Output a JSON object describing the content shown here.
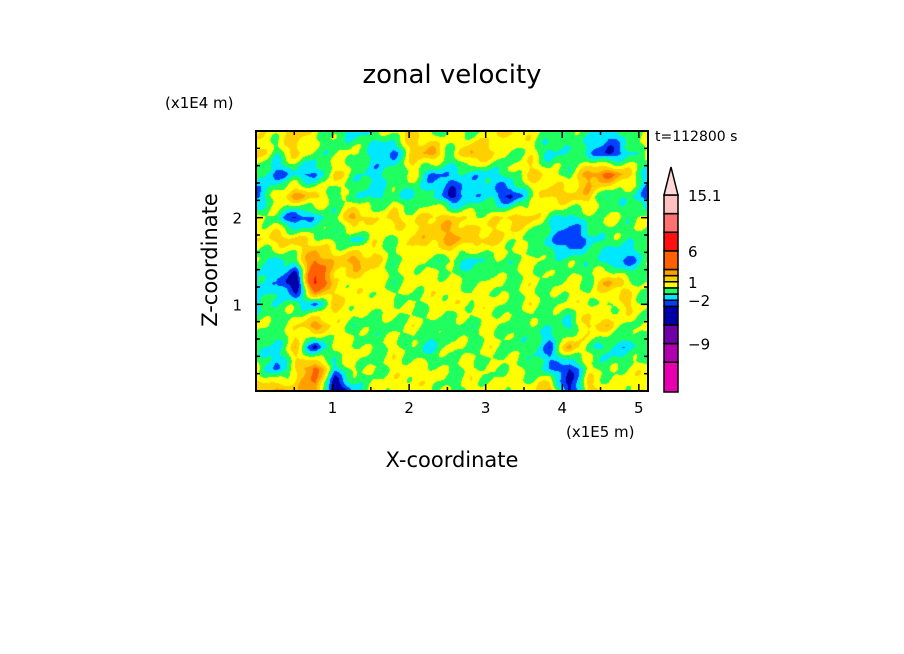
{
  "chart_data": {
    "type": "heatmap",
    "title": "zonal velocity",
    "xlabel": "X-coordinate",
    "ylabel": "Z-coordinate",
    "x_unit": "(x1E5 m)",
    "y_unit": "(x1E4 m)",
    "annotation": "t=112800 s",
    "xlim": [
      0,
      5.12
    ],
    "ylim": [
      0,
      3.0
    ],
    "x_ticks": [
      "1",
      "2",
      "3",
      "4",
      "5"
    ],
    "y_ticks": [
      "1",
      "2"
    ],
    "grid": false,
    "colorbar": {
      "levels": [
        -12,
        -9,
        -6,
        -3,
        -2,
        -1,
        0,
        1,
        2,
        3,
        6,
        9,
        12,
        15.1
      ],
      "colors": [
        "#e800b0",
        "#b000b0",
        "#7000a8",
        "#0000a8",
        "#0040ff",
        "#00e8ff",
        "#20ff60",
        "#ffff00",
        "#ffd000",
        "#ffa000",
        "#ff6000",
        "#ff1010",
        "#ff7070",
        "#ffc0c0",
        "#ffd8d8"
      ],
      "labels": [
        "15.1",
        "6",
        "1",
        "-2",
        "-9"
      ],
      "placement": "right"
    },
    "grid_z_top_to_bottom": [
      3.0,
      2.75,
      2.5,
      2.25,
      2.0,
      1.75,
      1.5,
      1.25,
      1.0,
      0.75,
      0.5,
      0.25,
      0.0
    ],
    "values": [
      [
        0.5,
        0.5,
        1.5,
        0.5,
        -0.5,
        -1.5,
        -0.5,
        0.5,
        1.5,
        -0.5,
        0.5,
        -0.5,
        0.5,
        1.5,
        0.5,
        -0.5,
        -0.5,
        -0.5,
        -1.5,
        -0.5,
        0.5
      ],
      [
        1.5,
        -0.5,
        1.5,
        -0.5,
        -0.5,
        0.5,
        -1.5,
        -2.5,
        1.5,
        2.5,
        -0.5,
        2.5,
        1.5,
        -0.5,
        0.5,
        -1.5,
        -0.5,
        -1.5,
        -3.5,
        -1.5,
        0.5
      ],
      [
        -0.5,
        -2.5,
        -1.5,
        -2.5,
        1.5,
        -0.5,
        -1.5,
        -0.5,
        0.5,
        -2.5,
        -1.5,
        -1.5,
        -1.5,
        -0.5,
        1.5,
        0.5,
        -0.5,
        2.5,
        3.5,
        1.5,
        -1.5
      ],
      [
        -2.5,
        0.5,
        2.5,
        1.5,
        -0.5,
        -0.5,
        -1.5,
        -0.5,
        -1.5,
        -0.5,
        -3.5,
        -1.5,
        -1.5,
        -3.5,
        -0.5,
        1.5,
        1.5,
        1.5,
        -1.5,
        -0.5,
        -2.5
      ],
      [
        0.5,
        -0.5,
        -3.5,
        -1.5,
        -0.5,
        2.5,
        0.5,
        1.5,
        0.5,
        1.5,
        1.5,
        0.5,
        0.5,
        1.5,
        1.5,
        -0.5,
        -1.5,
        -0.5,
        0.5,
        -0.5,
        0.5
      ],
      [
        0.5,
        1.5,
        1.5,
        0.5,
        -0.5,
        -1.5,
        0.5,
        -0.5,
        1.5,
        1.5,
        2.5,
        1.5,
        1.5,
        0.5,
        -0.5,
        -1.5,
        -3.5,
        -1.5,
        -0.5,
        -0.5,
        -0.5
      ],
      [
        -0.5,
        -1.5,
        -0.5,
        3.5,
        1.5,
        2.5,
        1.5,
        -0.5,
        0.5,
        -0.5,
        -0.5,
        -1.5,
        -0.5,
        -0.5,
        0.5,
        -0.5,
        -0.5,
        -0.5,
        -1.5,
        -2.5,
        -0.5
      ],
      [
        -1.5,
        -1.5,
        -5,
        7,
        0.5,
        0.5,
        0.5,
        -0.5,
        0.5,
        0.5,
        0.5,
        -0.5,
        0.5,
        -0.5,
        0.5,
        -0.5,
        0.5,
        -0.5,
        2.5,
        0.5,
        -0.5
      ],
      [
        -1.5,
        -0.5,
        -0.5,
        -2.5,
        1.5,
        0.5,
        0.5,
        0.5,
        -0.5,
        0.5,
        0.5,
        0.5,
        0.5,
        -0.5,
        0.5,
        -0.5,
        0.5,
        0.5,
        -0.5,
        1.5,
        -0.5
      ],
      [
        0.5,
        -0.5,
        0.5,
        3,
        0.5,
        -0.5,
        -0.5,
        -0.5,
        0.5,
        -0.5,
        -0.5,
        -0.5,
        0.5,
        -0.5,
        -0.5,
        -0.5,
        -1.5,
        1.5,
        1.5,
        -0.5,
        0.5
      ],
      [
        -0.5,
        -1.5,
        1.5,
        -3.5,
        0.5,
        0.5,
        -0.5,
        0.5,
        -0.5,
        -1.5,
        0.5,
        -0.5,
        0.5,
        -0.5,
        -0.5,
        -2.5,
        2.5,
        -0.5,
        -1.5,
        -1.5,
        -0.5
      ],
      [
        0.5,
        -2.5,
        0.5,
        4,
        -1.5,
        0.5,
        -0.5,
        0.5,
        0.5,
        0.5,
        -0.5,
        0.5,
        -0.5,
        0.5,
        -0.5,
        -1.5,
        -3.5,
        0.5,
        -0.5,
        0.5,
        0.5
      ],
      [
        1.5,
        2.5,
        1.5,
        3,
        -5,
        -1.5,
        0.5,
        0.5,
        0.5,
        0.5,
        -0.5,
        0.5,
        0.5,
        0.5,
        0.5,
        2.5,
        -4,
        1.5,
        0.5,
        0.5,
        0.5
      ]
    ]
  }
}
